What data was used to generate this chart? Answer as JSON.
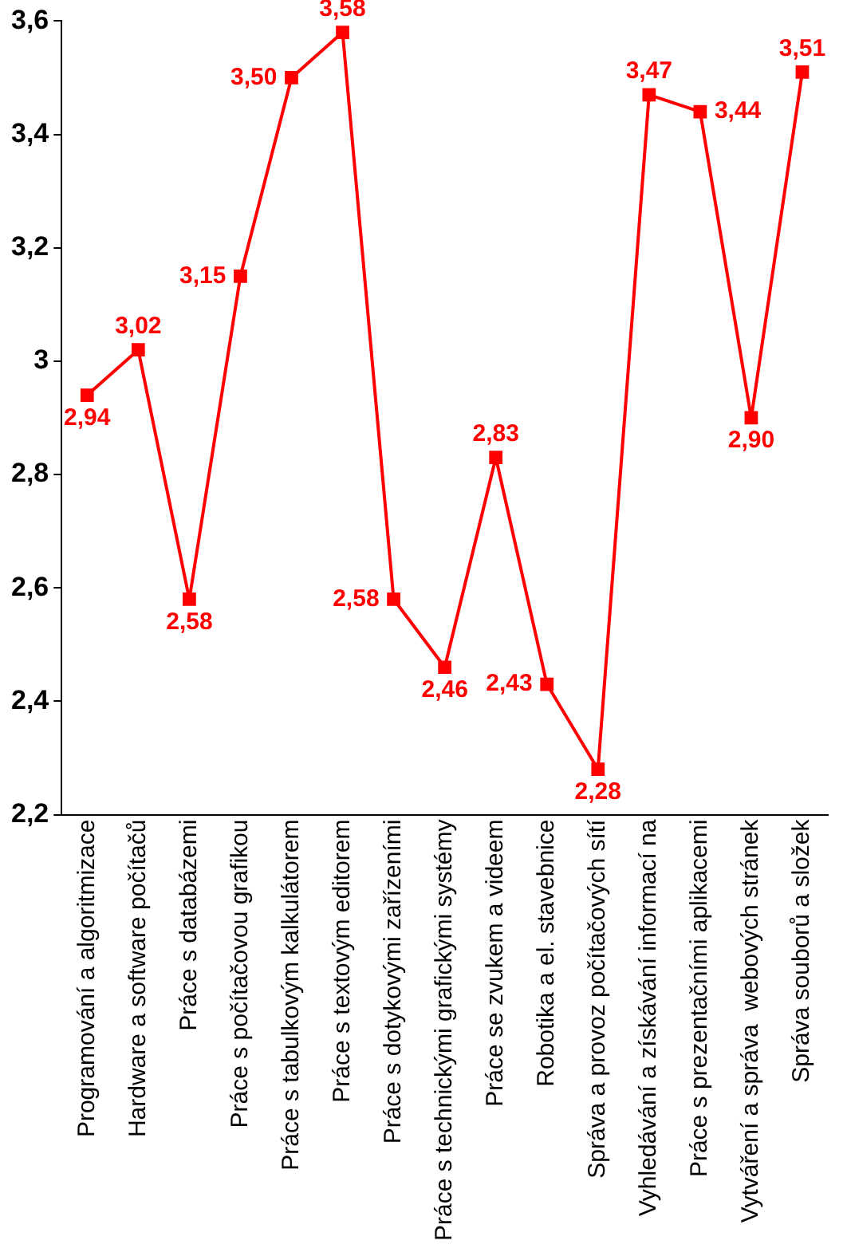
{
  "chart_data": {
    "type": "line",
    "categories": [
      "Programování a algoritmizace",
      "Hardware a software počítačů",
      "Práce s databázemi",
      "Práce s počítačovou grafikou",
      "Práce s tabulkovým kalkulátorem",
      "Práce s textovým editorem",
      "Práce s dotykovými zařízeními",
      "Práce s technickými grafickými systémy",
      "Práce se zvukem a videem",
      "Robotika a el. stavebnice",
      "Správa a provoz počítačových sítí",
      "Vyhledávání a získávání informací na",
      "Práce s prezentačními aplikacemi",
      "Vytváření a správa  webových stránek",
      "Správa souborů a složek"
    ],
    "series": [
      {
        "color": "#ff0000",
        "values": [
          2.94,
          3.02,
          2.58,
          3.15,
          3.5,
          3.58,
          2.58,
          2.46,
          2.83,
          2.43,
          2.28,
          3.47,
          3.44,
          2.9,
          3.51
        ],
        "value_labels": [
          "2,94",
          "3,02",
          "2,58",
          "3,15",
          "3,50",
          "3,58",
          "2,58",
          "2,46",
          "2,83",
          "2,43",
          "2,28",
          "3,47",
          "3,44",
          "2,90",
          "3,51"
        ]
      }
    ],
    "ylim": [
      2.2,
      3.6
    ],
    "yticks": [
      {
        "value": 2.2,
        "label": "2,2"
      },
      {
        "value": 2.4,
        "label": "2,4"
      },
      {
        "value": 2.6,
        "label": "2,6"
      },
      {
        "value": 2.8,
        "label": "2,8"
      },
      3,
      {
        "value": 3.2,
        "label": "3,2"
      },
      {
        "value": 3.4,
        "label": "3,4"
      },
      {
        "value": 3.6,
        "label": "3,6"
      }
    ],
    "grid": false,
    "legend": false,
    "marker": "square",
    "line_style": "solid"
  }
}
